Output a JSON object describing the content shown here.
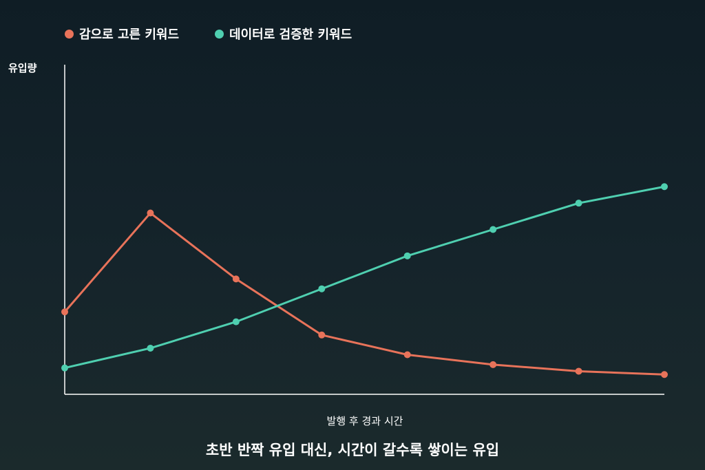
{
  "colors": {
    "series_intuition": "#e8735a",
    "series_data": "#4fcfb0",
    "axis": "#ffffff"
  },
  "chart_data": {
    "type": "line",
    "title": "",
    "xlabel": "발행 후 경과 시간",
    "ylabel": "유입량",
    "caption": "초반 반짝 유입 대신, 시간이 갈수록 쌓이는 유입",
    "x": [
      0,
      1,
      2,
      3,
      4,
      5,
      6,
      7
    ],
    "xlim": [
      0,
      7
    ],
    "ylim": [
      0,
      100
    ],
    "grid": false,
    "legend_position": "top-left",
    "series": [
      {
        "name": "감으로 고른 키워드",
        "color": "#e8735a",
        "values": [
          25,
          55,
          35,
          18,
          12,
          9,
          7,
          6
        ]
      },
      {
        "name": "데이터로 검증한 키워드",
        "color": "#4fcfb0",
        "values": [
          8,
          14,
          22,
          32,
          42,
          50,
          58,
          63
        ]
      }
    ]
  }
}
